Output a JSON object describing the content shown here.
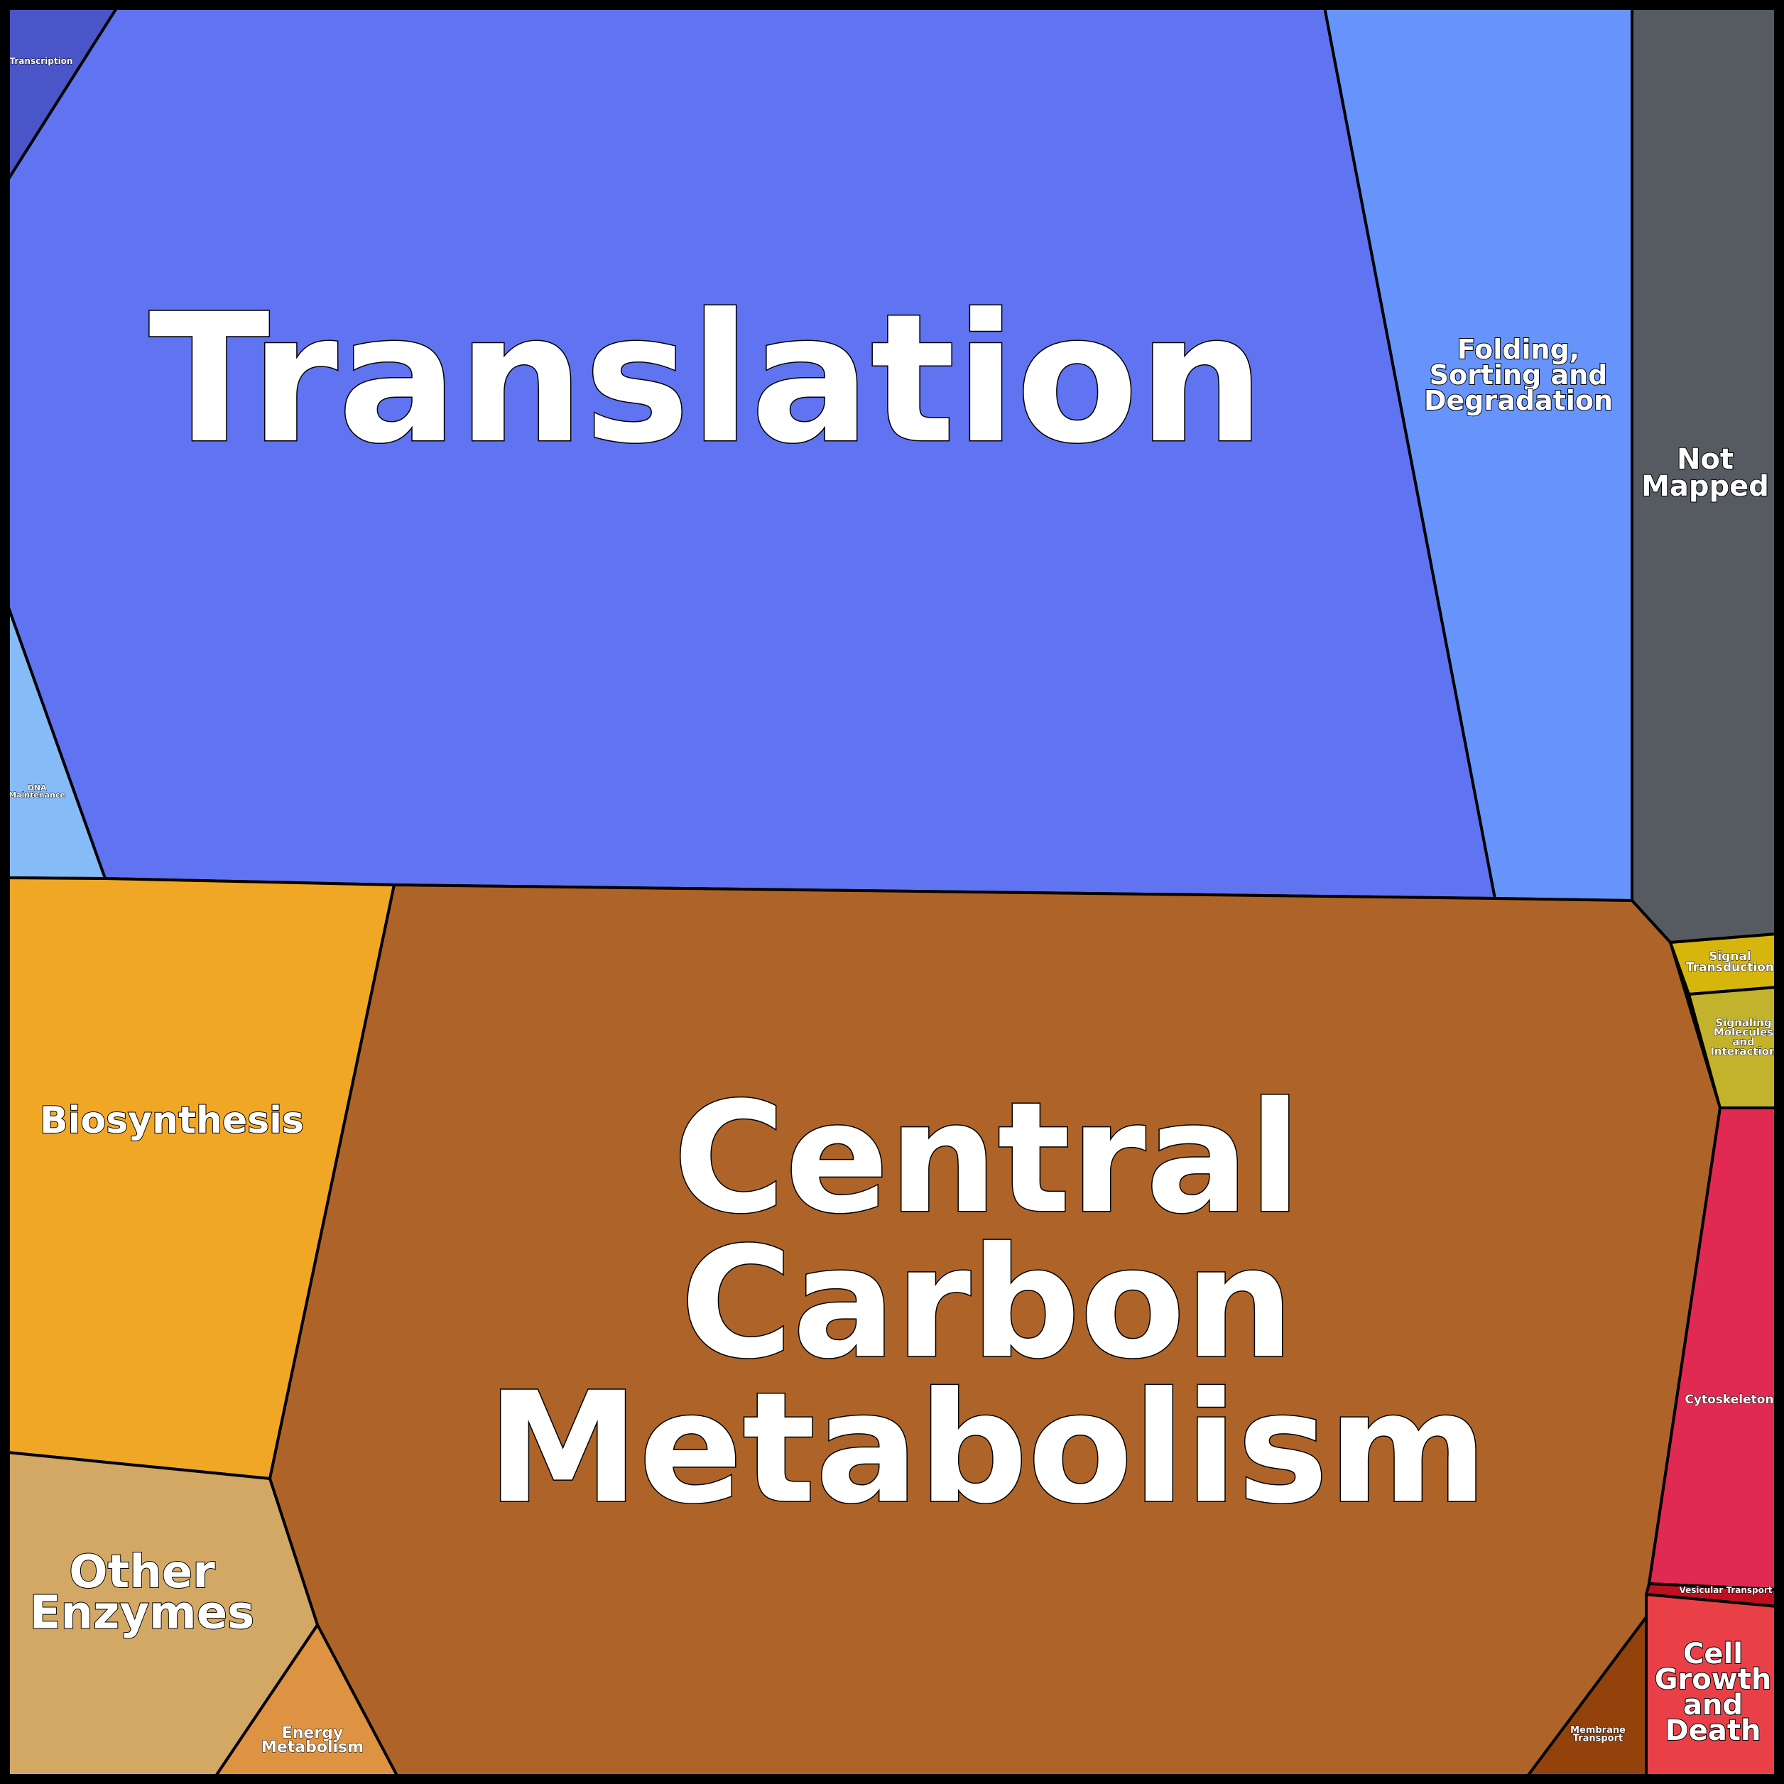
{
  "voronoi_treemap": {
    "cells": [
      {
        "id": "translation",
        "label": [
          "Translation"
        ],
        "color": "#6073F0"
      },
      {
        "id": "folding",
        "label": [
          "Folding,",
          "Sorting and",
          "Degradation"
        ],
        "color": "#6694FA"
      },
      {
        "id": "not-mapped",
        "label": [
          "Not",
          "Mapped"
        ],
        "color": "#555B60"
      },
      {
        "id": "transcription",
        "label": [
          "Transcription"
        ],
        "color": "#4A56C8"
      },
      {
        "id": "dna-maintenance",
        "label": [
          "DNA",
          "Maintenance"
        ],
        "color": "#85BCF7"
      },
      {
        "id": "biosynthesis",
        "label": [
          "Biosynthesis"
        ],
        "color": "#F0A725"
      },
      {
        "id": "central-carbon",
        "label": [
          "Central",
          "Carbon",
          "Metabolism"
        ],
        "color": "#AE6428"
      },
      {
        "id": "other-enzymes",
        "label": [
          "Other",
          "Enzymes"
        ],
        "color": "#D3A764"
      },
      {
        "id": "energy-metabolism",
        "label": [
          "Energy",
          "Metabolism"
        ],
        "color": "#DE9343"
      },
      {
        "id": "membrane-transport",
        "label": [
          "Membrane",
          "Transport"
        ],
        "color": "#93420C"
      },
      {
        "id": "signal-transduction",
        "label": [
          "Signal",
          "Transduction"
        ],
        "color": "#D6B60C"
      },
      {
        "id": "signaling-molecules",
        "label": [
          "Signaling",
          "Molecules",
          "and",
          "Interaction"
        ],
        "color": "#C3B22C"
      },
      {
        "id": "cytoskeleton",
        "label": [
          "Cytoskeleton"
        ],
        "color": "#E12A52"
      },
      {
        "id": "vesicular-transport",
        "label": [
          "Vesicular Transport"
        ],
        "color": "#BE1020"
      },
      {
        "id": "cell-growth",
        "label": [
          "Cell",
          "Growth",
          "and",
          "Death"
        ],
        "color": "#E94048"
      }
    ]
  }
}
